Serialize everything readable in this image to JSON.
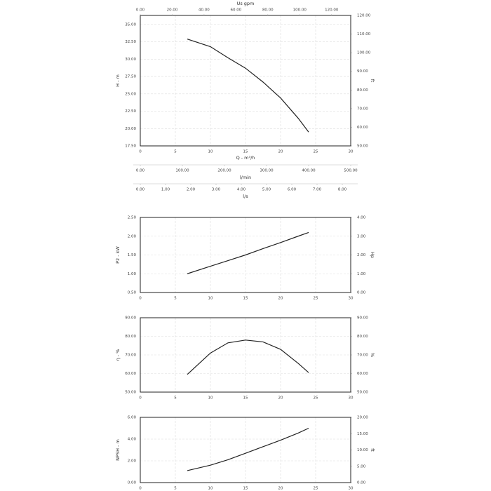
{
  "chart_data": [
    {
      "type": "line",
      "xlabel": "Q - m³/h",
      "ylabel": "H - m",
      "y2label": "ft",
      "xlim": [
        0,
        30
      ],
      "xticks": [
        0,
        5,
        10,
        15,
        20,
        25,
        30
      ],
      "ylim": [
        17.5,
        36.3
      ],
      "yticks": [
        {
          "value": 17.5,
          "label": "17.50"
        },
        {
          "value": 20,
          "label": "20.00"
        },
        {
          "value": 22.5,
          "label": "22.50"
        },
        {
          "value": 25,
          "label": "25.00"
        },
        {
          "value": 27.5,
          "label": "27.50"
        },
        {
          "value": 30,
          "label": "30.00"
        },
        {
          "value": 32.5,
          "label": "32.50"
        },
        {
          "value": 35,
          "label": "35.00"
        }
      ],
      "y2lim": [
        50,
        120
      ],
      "y2ticks": [
        {
          "value": 50,
          "label": "50.00"
        },
        {
          "value": 60,
          "label": "60.00"
        },
        {
          "value": 70,
          "label": "70.00"
        },
        {
          "value": 80,
          "label": "80.00"
        },
        {
          "value": 90,
          "label": "90.00"
        },
        {
          "value": 100,
          "label": "100.00"
        },
        {
          "value": 110,
          "label": "110.00"
        },
        {
          "value": 120,
          "label": "120.00"
        }
      ],
      "x2": {
        "label": "Us gpm",
        "xlim": [
          0,
          132
        ],
        "xticks": [
          {
            "value": 0,
            "label": "0.00"
          },
          {
            "value": 20,
            "label": "20.00"
          },
          {
            "value": 40,
            "label": "40.00"
          },
          {
            "value": 60,
            "label": "60.00"
          },
          {
            "value": 80,
            "label": "80.00"
          },
          {
            "value": 100,
            "label": "100.00"
          },
          {
            "value": 120,
            "label": "120.00"
          }
        ]
      },
      "extra_x_axes": [
        {
          "label": "l/min",
          "xlim": [
            0,
            500
          ],
          "xticks": [
            {
              "value": 0,
              "label": "0.00"
            },
            {
              "value": 100,
              "label": "100.00"
            },
            {
              "value": 200,
              "label": "200.00"
            },
            {
              "value": 300,
              "label": "300.00"
            },
            {
              "value": 400,
              "label": "400.00"
            },
            {
              "value": 500,
              "label": "500.00"
            }
          ]
        },
        {
          "label": "l/s",
          "xlim": [
            0,
            8.333
          ],
          "xticks": [
            {
              "value": 0,
              "label": "0.00"
            },
            {
              "value": 1,
              "label": "1.00"
            },
            {
              "value": 2,
              "label": "2.00"
            },
            {
              "value": 3,
              "label": "3.00"
            },
            {
              "value": 4,
              "label": "4.00"
            },
            {
              "value": 5,
              "label": "5.00"
            },
            {
              "value": 6,
              "label": "6.00"
            },
            {
              "value": 7,
              "label": "7.00"
            },
            {
              "value": 8,
              "label": "8.00"
            }
          ]
        }
      ],
      "grid": true,
      "color": "#222",
      "x": [
        6.7,
        10,
        12.5,
        15,
        17.5,
        20,
        22.5,
        24
      ],
      "values": [
        32.9,
        31.8,
        30.2,
        28.7,
        26.7,
        24.4,
        21.5,
        19.5
      ]
    },
    {
      "type": "line",
      "ylabel": "P2 - kW",
      "y2label": "Hp",
      "xlim": [
        0,
        30
      ],
      "xticks": [
        0,
        5,
        10,
        15,
        20,
        25,
        30
      ],
      "ylim": [
        0.5,
        2.5
      ],
      "yticks": [
        {
          "value": 0.5,
          "label": "0.50"
        },
        {
          "value": 1,
          "label": "1.00"
        },
        {
          "value": 1.5,
          "label": "1.50"
        },
        {
          "value": 2,
          "label": "2.00"
        },
        {
          "value": 2.5,
          "label": "2.50"
        }
      ],
      "y2lim": [
        0,
        4
      ],
      "y2ticks": [
        {
          "value": 0,
          "label": "0.00"
        },
        {
          "value": 1,
          "label": "1.00"
        },
        {
          "value": 2,
          "label": "2.00"
        },
        {
          "value": 3,
          "label": "3.00"
        },
        {
          "value": 4,
          "label": "4.00"
        }
      ],
      "grid": true,
      "color": "#222",
      "x": [
        6.7,
        10,
        12.5,
        15,
        17.5,
        20,
        22.5,
        24
      ],
      "values": [
        1.0,
        1.2,
        1.35,
        1.5,
        1.67,
        1.83,
        2.0,
        2.1
      ]
    },
    {
      "type": "line",
      "ylabel": "η - %",
      "y2label": "%",
      "xlim": [
        0,
        30
      ],
      "xticks": [
        0,
        5,
        10,
        15,
        20,
        25,
        30
      ],
      "ylim": [
        50,
        90
      ],
      "yticks": [
        {
          "value": 50,
          "label": "50.00"
        },
        {
          "value": 60,
          "label": "60.00"
        },
        {
          "value": 70,
          "label": "70.00"
        },
        {
          "value": 80,
          "label": "80.00"
        },
        {
          "value": 90,
          "label": "90.00"
        }
      ],
      "y2lim": [
        50,
        90
      ],
      "y2ticks": [
        {
          "value": 50,
          "label": "50.00"
        },
        {
          "value": 60,
          "label": "60.00"
        },
        {
          "value": 70,
          "label": "70.00"
        },
        {
          "value": 80,
          "label": "80.00"
        },
        {
          "value": 90,
          "label": "90.00"
        }
      ],
      "grid": true,
      "color": "#222",
      "x": [
        6.7,
        10,
        12.5,
        15,
        17.5,
        20,
        22.5,
        24
      ],
      "values": [
        59.5,
        71,
        76.5,
        78,
        77,
        73,
        65.5,
        60.5
      ]
    },
    {
      "type": "line",
      "ylabel": "NPSH - m",
      "y2label": "ft",
      "xlim": [
        0,
        30
      ],
      "xticks": [
        0,
        5,
        10,
        15,
        20,
        25,
        30
      ],
      "ylim": [
        0,
        6
      ],
      "yticks": [
        {
          "value": 0,
          "label": "0.00"
        },
        {
          "value": 2,
          "label": "2.00"
        },
        {
          "value": 4,
          "label": "4.00"
        },
        {
          "value": 6,
          "label": "6.00"
        }
      ],
      "y2lim": [
        0,
        20
      ],
      "y2ticks": [
        {
          "value": 0,
          "label": "0.00"
        },
        {
          "value": 5,
          "label": "5.00"
        },
        {
          "value": 10,
          "label": "10.00"
        },
        {
          "value": 15,
          "label": "15.00"
        },
        {
          "value": 20,
          "label": "20.00"
        }
      ],
      "grid": true,
      "color": "#222",
      "x": [
        6.7,
        10,
        12.5,
        15,
        17.5,
        20,
        22.5,
        24
      ],
      "values": [
        1.1,
        1.6,
        2.1,
        2.7,
        3.3,
        3.9,
        4.55,
        5.0
      ]
    }
  ]
}
